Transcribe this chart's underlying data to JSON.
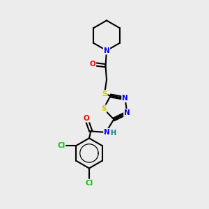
{
  "background_color": "#ececec",
  "bond_color": "#000000",
  "atom_colors": {
    "N": "#0000ff",
    "O": "#ff0000",
    "S": "#cccc00",
    "Cl": "#00cc00",
    "C": "#000000",
    "H": "#008080"
  }
}
